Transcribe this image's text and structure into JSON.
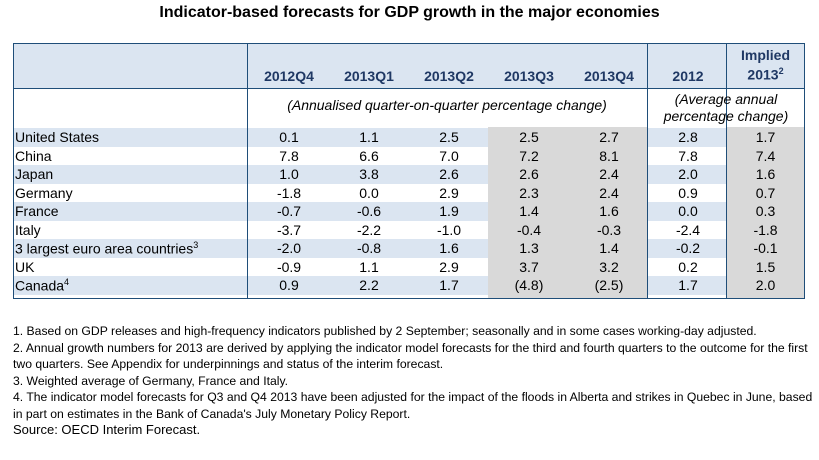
{
  "title": "Indicator-based forecasts for GDP growth in the major economies",
  "columns": [
    "2012Q4",
    "2013Q1",
    "2013Q2",
    "2013Q3",
    "2013Q4",
    "2012"
  ],
  "implied_label": "Implied",
  "implied_year": "2013",
  "implied_note_ref": "2",
  "quarterly_subheader": "(Annualised quarter-on-quarter percentage change)",
  "annual_subheader_line1": "(Average annual",
  "annual_subheader_line2": "percentage change)",
  "rows": [
    {
      "label": "United States",
      "sup": "",
      "values": [
        "0.1",
        "1.1",
        "2.5",
        "2.5",
        "2.7",
        "2.8",
        "1.7"
      ]
    },
    {
      "label": "China",
      "sup": "",
      "values": [
        "7.8",
        "6.6",
        "7.0",
        "7.2",
        "8.1",
        "7.8",
        "7.4"
      ]
    },
    {
      "label": "Japan",
      "sup": "",
      "values": [
        "1.0",
        "3.8",
        "2.6",
        "2.6",
        "2.4",
        "2.0",
        "1.6"
      ]
    },
    {
      "label": "Germany",
      "sup": "",
      "values": [
        "-1.8",
        "0.0",
        "2.9",
        "2.3",
        "2.4",
        "0.9",
        "0.7"
      ]
    },
    {
      "label": "France",
      "sup": "",
      "values": [
        "-0.7",
        "-0.6",
        "1.9",
        "1.4",
        "1.6",
        "0.0",
        "0.3"
      ]
    },
    {
      "label": "Italy",
      "sup": "",
      "values": [
        "-3.7",
        "-2.2",
        "-1.0",
        "-0.4",
        "-0.3",
        "-2.4",
        "-1.8"
      ]
    },
    {
      "label": "3 largest euro area countries",
      "sup": "3",
      "values": [
        "-2.0",
        "-0.8",
        "1.6",
        "1.3",
        "1.4",
        "-0.2",
        "-0.1"
      ]
    },
    {
      "label": "UK",
      "sup": "",
      "values": [
        "-0.9",
        "1.1",
        "2.9",
        "3.7",
        "3.2",
        "0.2",
        "1.5"
      ]
    },
    {
      "label": "Canada",
      "sup": "4",
      "values": [
        "0.9",
        "2.2",
        "1.7",
        "(4.8)",
        "(2.5)",
        "1.7",
        "2.0"
      ]
    }
  ],
  "notes": [
    "1. Based on GDP releases and high-frequency indicators published by 2 September; seasonally and in some cases working-day adjusted.",
    "2. Annual growth numbers for 2013 are derived by applying the indicator model forecasts for the third and fourth quarters to the outcome for the first two quarters. See Appendix for underpinnings and status of the interim forecast.",
    "3. Weighted average of Germany, France and Italy.",
    "4. The indicator model forecasts for Q3 and Q4 2013 have been adjusted for the impact of the floods in Alberta and strikes in Quebec in June, based in part on estimates in the Bank of Canada's July Monetary Policy Report."
  ],
  "source": "Source: OECD Interim Forecast.",
  "colors": {
    "band": "#dbe5f1",
    "shade": "#d9d9d9",
    "rule": "#1f4e79",
    "header_text": "#1f3864"
  }
}
